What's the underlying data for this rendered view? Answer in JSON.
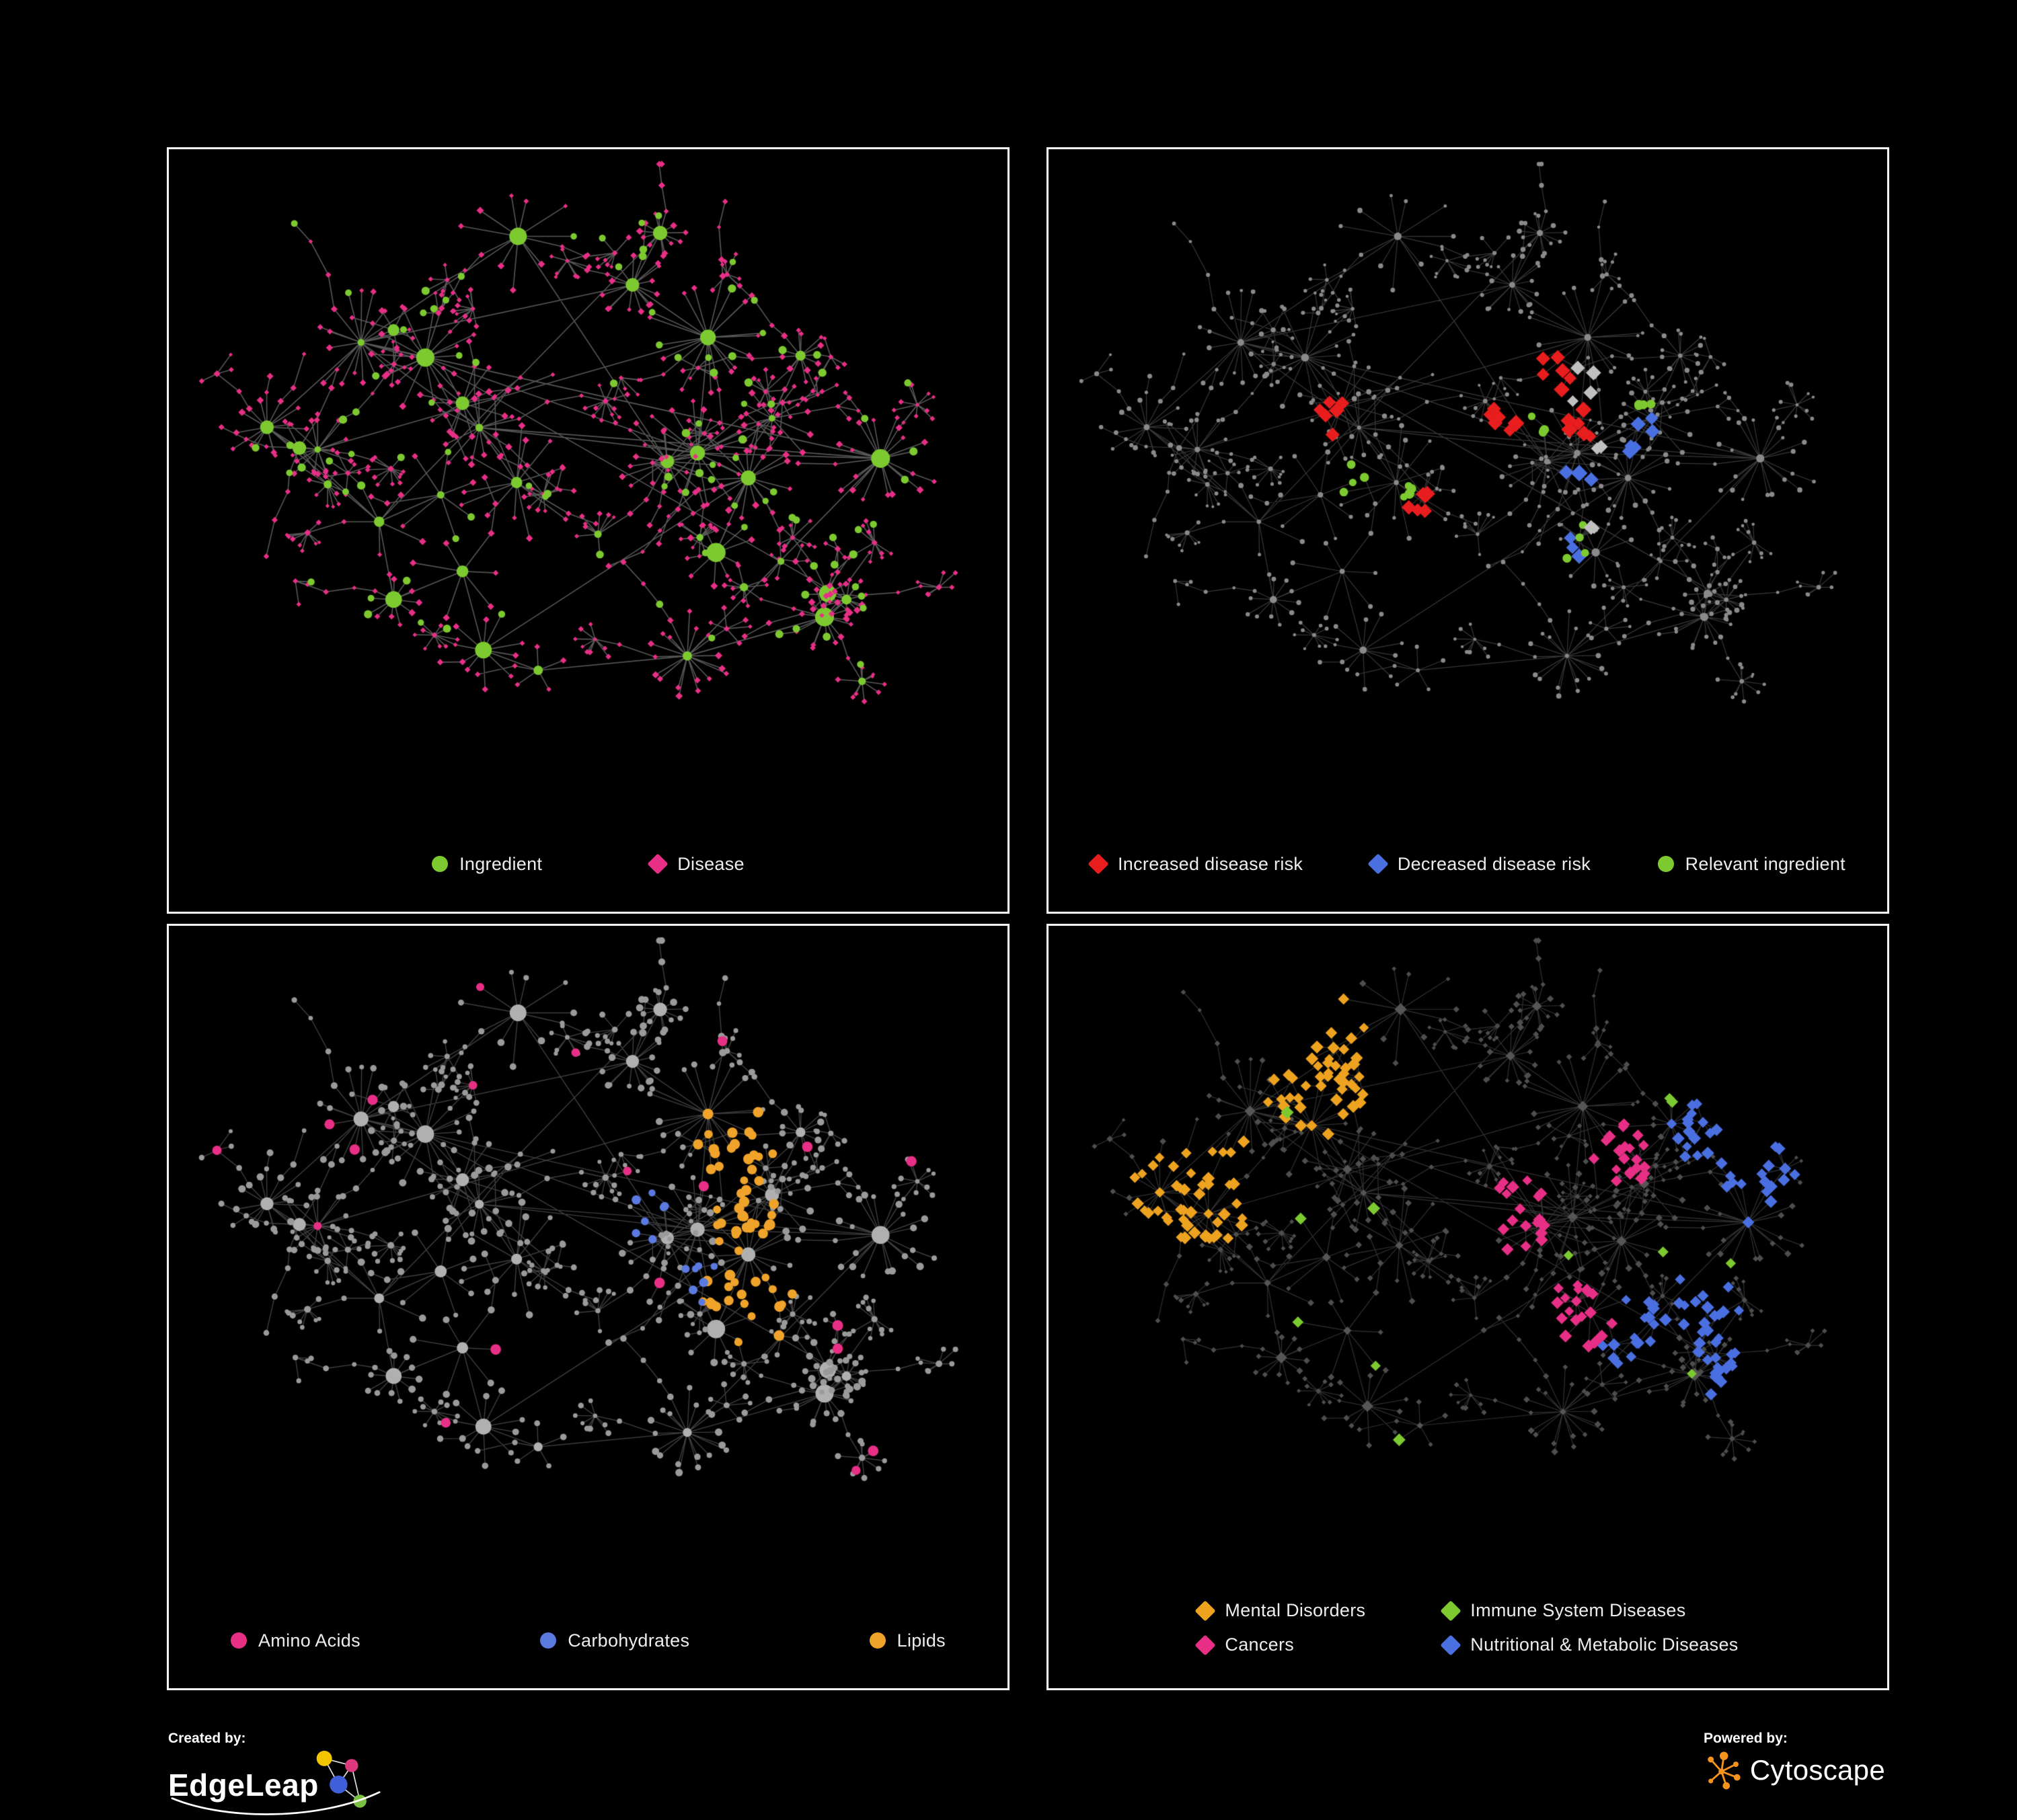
{
  "figure": {
    "panels": [
      {
        "key": "ingredient-disease",
        "legend": [
          {
            "label": "Ingredient",
            "shape": "circle",
            "color": "#7dc930"
          },
          {
            "label": "Disease",
            "shape": "diamond",
            "color": "#e72f86"
          }
        ],
        "viz": {
          "edge_color": "rgba(158,158,158,0.55)",
          "edge_width": 1.6,
          "hub": {
            "color": "#7dc930",
            "shape": "circle",
            "scale": 1.15
          },
          "base": {
            "color": "#e72f86",
            "shape": "diamond",
            "scale": 1.0
          },
          "overlays": [
            {
              "color": "#7dc930",
              "shape": "circle",
              "size": 5.5,
              "count": 110,
              "mode": "scatter"
            }
          ]
        }
      },
      {
        "key": "disease-risk",
        "legend": [
          {
            "label": "Increased disease risk",
            "shape": "diamond",
            "color": "#e81d1d"
          },
          {
            "label": "Decreased disease risk",
            "shape": "diamond",
            "color": "#4a6fe0"
          },
          {
            "label": "Relevant ingredient",
            "shape": "circle",
            "color": "#7dc930"
          }
        ],
        "viz": {
          "edge_color": "rgba(125,125,125,0.45)",
          "edge_width": 1.2,
          "hub": {
            "color": "#8a8a8a",
            "shape": "circle",
            "scale": 0.5
          },
          "base": {
            "color": "#8a8a8a",
            "shape": "circle",
            "scale": 0.7
          },
          "overlays": [
            {
              "color": "#e81d1d",
              "shape": "diamond",
              "size": 11,
              "count": 30,
              "clusters": 5,
              "bias": "center"
            },
            {
              "color": "#4a6fe0",
              "shape": "diamond",
              "size": 11,
              "count": 10,
              "clusters": 4,
              "bias": "center"
            },
            {
              "color": "#7dc930",
              "shape": "circle",
              "size": 6.5,
              "count": 20,
              "clusters": 5,
              "bias": "center"
            },
            {
              "color": "#c0c0c0",
              "shape": "diamond",
              "size": 10,
              "count": 7,
              "clusters": 4,
              "bias": "center"
            }
          ]
        }
      },
      {
        "key": "nutrient-classes",
        "legend": [
          {
            "label": "Amino Acids",
            "shape": "circle",
            "color": "#e72f86"
          },
          {
            "label": "Carbohydrates",
            "shape": "circle",
            "color": "#5b7ae0"
          },
          {
            "label": "Lipids",
            "shape": "circle",
            "color": "#f0a32a"
          }
        ],
        "viz": {
          "edge_color": "rgba(150,150,150,0.42)",
          "edge_width": 1.4,
          "hub": {
            "color": "#b0b0b0",
            "shape": "circle",
            "scale": 1.1
          },
          "base": {
            "color": "#9a9a9a",
            "shape": "circle",
            "scale": 1.0
          },
          "overlays": [
            {
              "color": "#f0a32a",
              "shape": "circle",
              "size": 7,
              "count": 62,
              "clusters": 3,
              "bias": "center"
            },
            {
              "color": "#e72f86",
              "shape": "circle",
              "size": 7,
              "count": 20,
              "mode": "scatter"
            },
            {
              "color": "#5b7ae0",
              "shape": "circle",
              "size": 6,
              "count": 14,
              "clusters": 2,
              "bias": "center"
            }
          ]
        }
      },
      {
        "key": "disease-classes",
        "legend": [
          {
            "label": "Mental Disorders",
            "shape": "diamond",
            "color": "#eea320"
          },
          {
            "label": "Immune System Diseases",
            "shape": "diamond",
            "color": "#7dc930"
          },
          {
            "label": "Cancers",
            "shape": "diamond",
            "color": "#e72f86"
          },
          {
            "label": "Nutritional & Metabolic Diseases",
            "shape": "diamond",
            "color": "#4a6fe0"
          }
        ],
        "viz": {
          "edge_color": "rgba(120,120,120,0.42)",
          "edge_width": 1.2,
          "hub": {
            "color": "#565656",
            "shape": "diamond",
            "scale": 0.8
          },
          "base": {
            "color": "#4e4e4e",
            "shape": "diamond",
            "scale": 0.95
          },
          "overlays": [
            {
              "color": "#eea320",
              "shape": "diamond",
              "size": 8.5,
              "count": 95,
              "clusters": 2,
              "bias": "left"
            },
            {
              "color": "#e72f86",
              "shape": "diamond",
              "size": 8.5,
              "count": 60,
              "clusters": 3,
              "bias": "center"
            },
            {
              "color": "#4a6fe0",
              "shape": "diamond",
              "size": 8.5,
              "count": 85,
              "clusters": 5,
              "bias": "right"
            },
            {
              "color": "#7dc930",
              "shape": "diamond",
              "size": 8.5,
              "count": 12,
              "mode": "scatter"
            }
          ]
        }
      }
    ]
  },
  "footer": {
    "created_by_label": "Created by:",
    "created_by_name": "EdgeLeap",
    "powered_by_label": "Powered by:",
    "powered_by_name": "Cytoscape",
    "cytoscape_orange": "#f6921e"
  }
}
